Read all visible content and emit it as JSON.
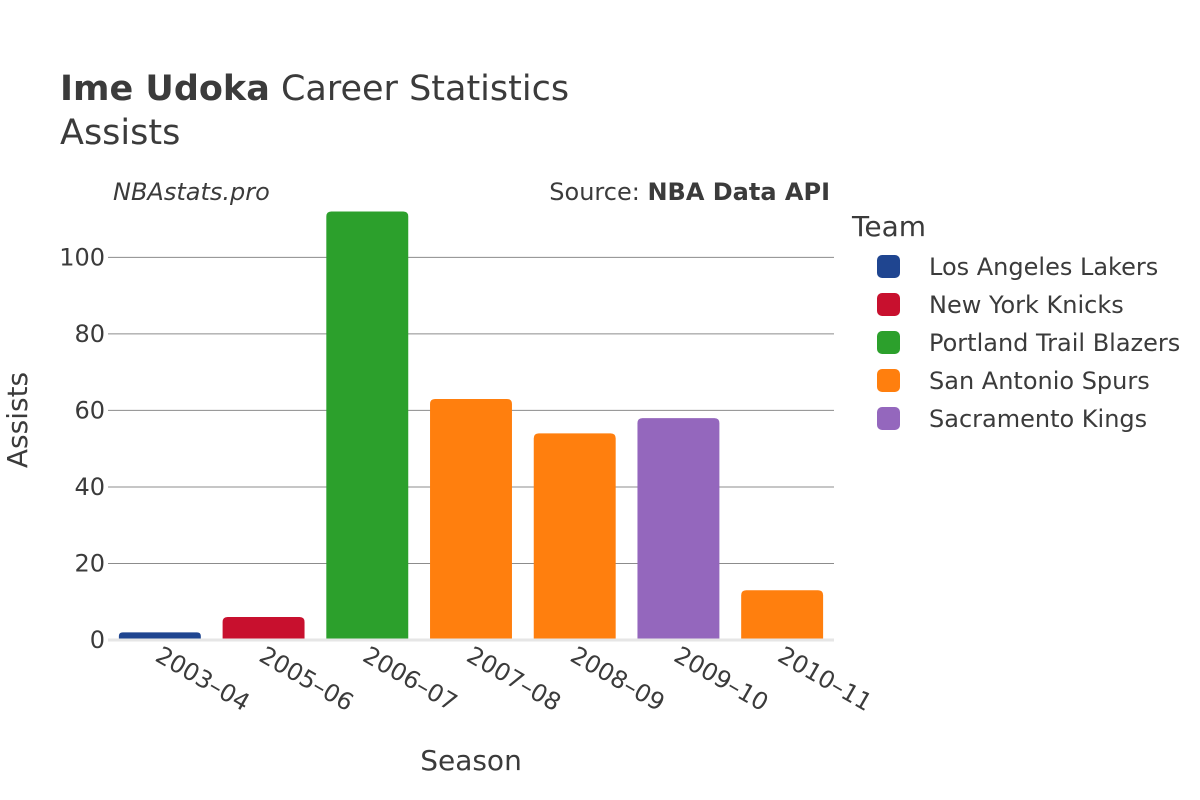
{
  "chart_data": {
    "type": "bar",
    "title": {
      "player": "Ime Udoka",
      "rest": "Career Statistics",
      "subtitle": "Assists"
    },
    "watermark": "NBAstats.pro",
    "source": {
      "prefix": "Source:",
      "name": "NBA Data API"
    },
    "xlabel": "Season",
    "ylabel": "Assists",
    "ylim": [
      0,
      115
    ],
    "yticks": [
      0,
      20,
      40,
      60,
      80,
      100
    ],
    "grid": true,
    "legend": {
      "title": "Team",
      "placement": "right",
      "items": [
        {
          "name": "Los Angeles Lakers",
          "color": "#1f4590"
        },
        {
          "name": "New York Knicks",
          "color": "#c8102e"
        },
        {
          "name": "Portland Trail Blazers",
          "color": "#2ca02c"
        },
        {
          "name": "San Antonio Spurs",
          "color": "#ff7f0e"
        },
        {
          "name": "Sacramento Kings",
          "color": "#9467bd"
        }
      ]
    },
    "categories": [
      "2003–04",
      "2005–06",
      "2006–07",
      "2007–08",
      "2008–09",
      "2009–10",
      "2010–11"
    ],
    "bars": [
      {
        "season": "2003–04",
        "team": "Los Angeles Lakers",
        "value": 2
      },
      {
        "season": "2005–06",
        "team": "New York Knicks",
        "value": 6
      },
      {
        "season": "2006–07",
        "team": "Portland Trail Blazers",
        "value": 112
      },
      {
        "season": "2007–08",
        "team": "San Antonio Spurs",
        "value": 63
      },
      {
        "season": "2008–09",
        "team": "San Antonio Spurs",
        "value": 54
      },
      {
        "season": "2009–10",
        "team": "Sacramento Kings",
        "value": 58
      },
      {
        "season": "2010–11",
        "team": "San Antonio Spurs",
        "value": 13
      }
    ]
  }
}
